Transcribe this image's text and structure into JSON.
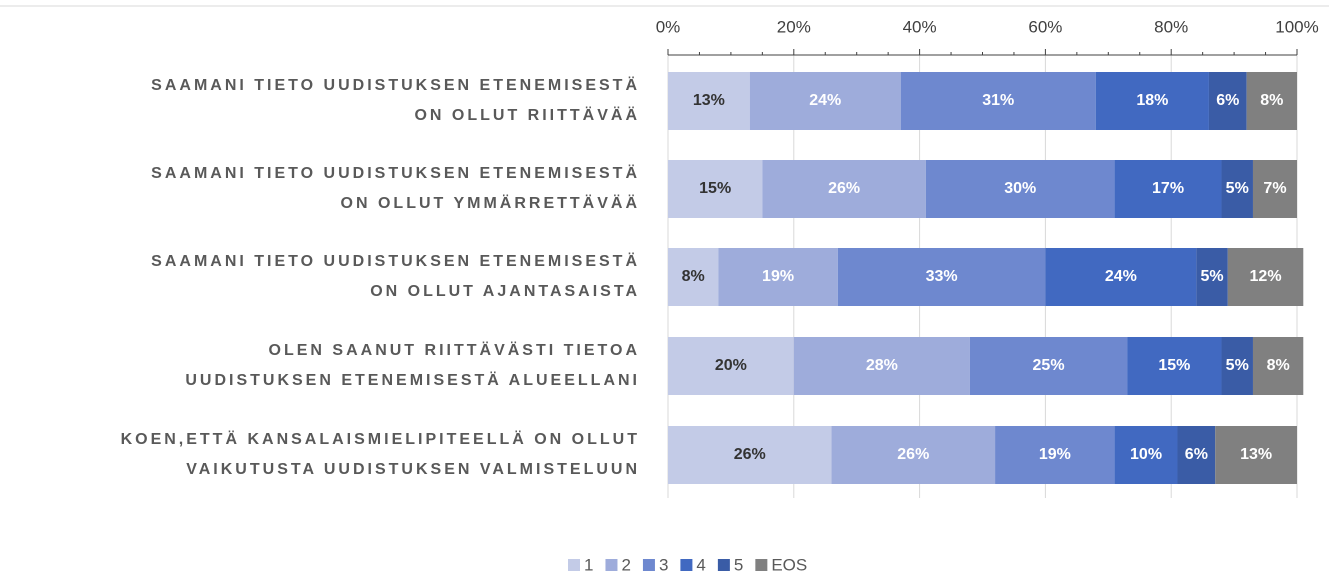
{
  "chart_data": {
    "type": "stacked_barh",
    "categories": [
      [
        "SAAMANI TIETO UUDISTUKSEN ETENEMISESTÄ",
        "ON OLLUT RIITTÄVÄÄ"
      ],
      [
        "SAAMANI TIETO UUDISTUKSEN ETENEMISESTÄ",
        "ON OLLUT YMMÄRRETTÄVÄÄ"
      ],
      [
        "SAAMANI TIETO UUDISTUKSEN ETENEMISESTÄ",
        "ON OLLUT AJANTASAISTA"
      ],
      [
        "OLEN SAANUT RIITTÄVÄSTI TIETOA",
        "UUDISTUKSEN ETENEMISESTÄ ALUEELLANI"
      ],
      [
        "KOEN,ETTÄ KANSALAISMIELIPITEELLÄ ON OLLUT",
        "VAIKUTUSTA UUDISTUKSEN VALMISTELUUN"
      ]
    ],
    "series": [
      {
        "name": "1",
        "color": "#c3cbe7",
        "label_color": "#333333",
        "values": [
          13,
          15,
          8,
          20,
          26
        ],
        "value_labels": [
          "13%",
          "15%",
          "8%",
          "20%",
          "26%"
        ]
      },
      {
        "name": "2",
        "color": "#9eacdb",
        "label_color": "#ffffff",
        "values": [
          24,
          26,
          19,
          28,
          26
        ],
        "value_labels": [
          "24%",
          "26%",
          "19%",
          "28%",
          "26%"
        ]
      },
      {
        "name": "3",
        "color": "#6e88cf",
        "label_color": "#ffffff",
        "values": [
          31,
          30,
          33,
          25,
          19
        ],
        "value_labels": [
          "31%",
          "30%",
          "33%",
          "25%",
          "19%"
        ]
      },
      {
        "name": "4",
        "color": "#4169c1",
        "label_color": "#ffffff",
        "values": [
          18,
          17,
          24,
          15,
          10
        ],
        "value_labels": [
          "18%",
          "17%",
          "24%",
          "15%",
          "10%"
        ]
      },
      {
        "name": "5",
        "color": "#3a5ca6",
        "label_color": "#ffffff",
        "values": [
          6,
          5,
          5,
          5,
          6
        ],
        "value_labels": [
          "6%",
          "5%",
          "5%",
          "5%",
          "6%"
        ]
      },
      {
        "name": "EOS",
        "color": "#808080",
        "label_color": "#ffffff",
        "values": [
          8,
          7,
          12,
          8,
          13
        ],
        "value_labels": [
          "8%",
          "7%",
          "12%",
          "8%",
          "13%"
        ]
      }
    ],
    "xlim": [
      0,
      100
    ],
    "xticks": [
      {
        "value": 0,
        "label": "0%"
      },
      {
        "value": 20,
        "label": "20%"
      },
      {
        "value": 40,
        "label": "40%"
      },
      {
        "value": 60,
        "label": "60%"
      },
      {
        "value": 80,
        "label": "80%"
      },
      {
        "value": 100,
        "label": "100%"
      }
    ],
    "grid": true,
    "legend": "bottom"
  }
}
